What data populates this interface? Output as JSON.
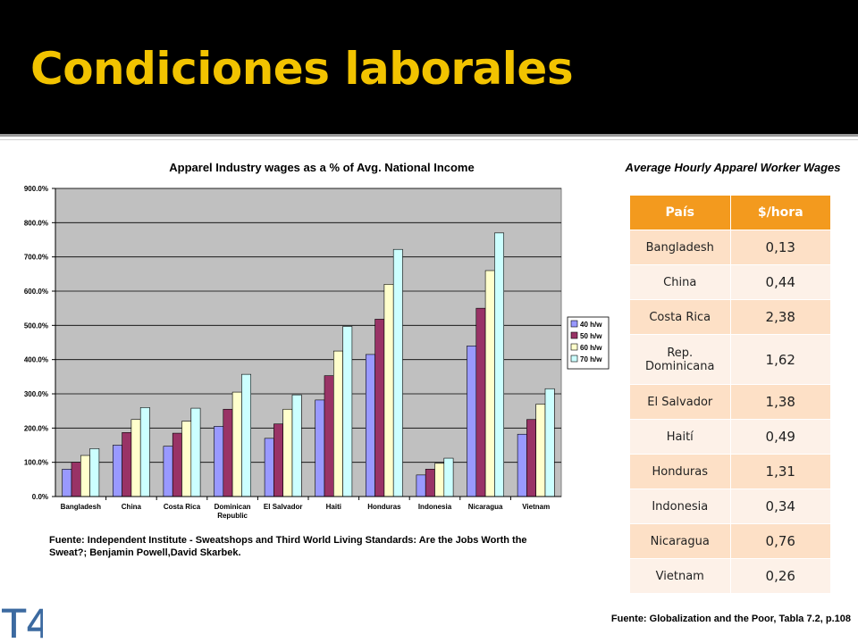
{
  "slide": {
    "title": "Condiciones laborales"
  },
  "chart_data": {
    "type": "bar",
    "title": "Apparel Industry wages as a % of Avg. National Income",
    "categories": [
      "Bangladesh",
      "China",
      "Costa Rica",
      "Dominican Republic",
      "El Salvador",
      "Haiti",
      "Honduras",
      "Indonesia",
      "Nicaragua",
      "Vietnam"
    ],
    "category_lines": [
      [
        "Bangladesh"
      ],
      [
        "China"
      ],
      [
        "Costa Rica"
      ],
      [
        "Dominican",
        "Republic"
      ],
      [
        "El Salvador"
      ],
      [
        "Haiti"
      ],
      [
        "Honduras"
      ],
      [
        "Indonesia"
      ],
      [
        "Nicaragua"
      ],
      [
        "Vietnam"
      ]
    ],
    "series": [
      {
        "name": "40 h/w",
        "color": "#9999ff",
        "values": [
          80,
          150,
          147,
          205,
          170,
          282,
          415,
          63,
          440,
          182
        ]
      },
      {
        "name": "50 h/w",
        "color": "#993366",
        "values": [
          100,
          187,
          185,
          255,
          212,
          353,
          518,
          80,
          550,
          225
        ]
      },
      {
        "name": "60 h/w",
        "color": "#ffffcc",
        "values": [
          120,
          225,
          220,
          305,
          255,
          425,
          620,
          97,
          660,
          270
        ]
      },
      {
        "name": "70 h/w",
        "color": "#ccffff",
        "values": [
          140,
          260,
          258,
          357,
          297,
          497,
          722,
          112,
          770,
          315
        ]
      }
    ],
    "ylim": [
      0,
      900
    ],
    "yticks": [
      "0.0%",
      "100.0%",
      "200.0%",
      "300.0%",
      "400.0%",
      "500.0%",
      "600.0%",
      "700.0%",
      "800.0%",
      "900.0%"
    ],
    "legend_position": "right",
    "grid": true,
    "plot_background": "#c0c0c0"
  },
  "chart_source": "Fuente: Independent Institute - Sweatshops and Third World Living Standards: Are the Jobs Worth the Sweat?; Benjamin Powell,David Skarbek.",
  "table": {
    "title": "Average Hourly Apparel Worker Wages",
    "headers": [
      "País",
      "$/hora"
    ],
    "rows": [
      [
        "Bangladesh",
        "0,13"
      ],
      [
        "China",
        "0,44"
      ],
      [
        "Costa Rica",
        "2,38"
      ],
      [
        "Rep. Dominicana",
        "1,62"
      ],
      [
        "El Salvador",
        "1,38"
      ],
      [
        "Haití",
        "0,49"
      ],
      [
        "Honduras",
        "1,31"
      ],
      [
        "Indonesia",
        "0,34"
      ],
      [
        "Nicaragua",
        "0,76"
      ],
      [
        "Vietnam",
        "0,26"
      ]
    ],
    "source": "Fuente: Globalization and the Poor, Tabla 7.2, p.108"
  },
  "logo": {
    "text": "T4",
    "color": "#3c6aa0"
  }
}
